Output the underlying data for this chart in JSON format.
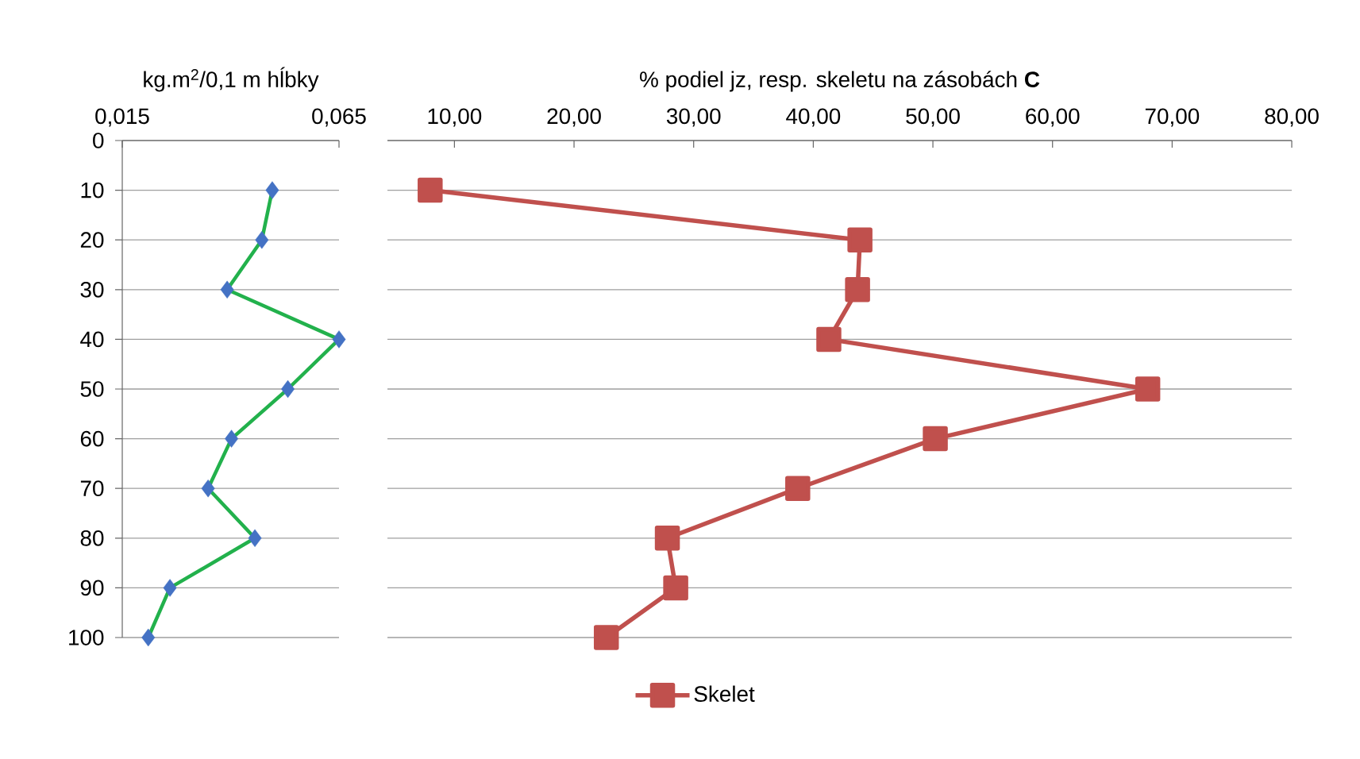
{
  "chart_data": [
    {
      "type": "line",
      "xlabel": "kg.m$^{2}$/0,1 m hĺbky",
      "xlim": [
        0.015,
        0.065
      ],
      "xticks": [
        {
          "value": 0.015,
          "label": "0,015"
        },
        {
          "value": 0.065,
          "label": "0,065"
        }
      ],
      "ylim": [
        100,
        0
      ],
      "yticks": [
        0,
        10,
        20,
        30,
        40,
        50,
        60,
        70,
        80,
        90,
        100
      ],
      "grid": "y",
      "marker": "diamond",
      "series": [
        {
          "color": "#22b14c",
          "colors": [
            "#4472c4",
            "#4472c4",
            "#4472c4",
            "#4472c4",
            "#4472c4",
            "#4472c4",
            "#4472c4",
            "#4472c4",
            "#4472c4",
            "#4472c4"
          ],
          "x": [
            0.0496,
            0.0472,
            0.0392,
            0.065,
            0.0532,
            0.0402,
            0.0348,
            0.0456,
            0.026,
            0.021
          ],
          "values": [
            10,
            20,
            30,
            40,
            50,
            60,
            70,
            80,
            90,
            100
          ]
        }
      ]
    },
    {
      "type": "line",
      "xlabel": "% podiel  jz, resp. skeletu  na zásobách **C**",
      "xlim": [
        4.4,
        80
      ],
      "xticks": [
        {
          "value": 10,
          "label": "10,00"
        },
        {
          "value": 20,
          "label": "20,00"
        },
        {
          "value": 30,
          "label": "30,00"
        },
        {
          "value": 40,
          "label": "40,00"
        },
        {
          "value": 50,
          "label": "50,00"
        },
        {
          "value": 60,
          "label": "60,00"
        },
        {
          "value": 70,
          "label": "70,00"
        },
        {
          "value": 80,
          "label": "80,00"
        }
      ],
      "ylim": [
        100,
        0
      ],
      "yticks": [
        0,
        10,
        20,
        30,
        40,
        50,
        60,
        70,
        80,
        90,
        100
      ],
      "tick_labels": "x",
      "grid": "y",
      "marker": "square",
      "legend": "bottom",
      "series": [
        {
          "name": "Skelet",
          "color": "#c0504d",
          "x": [
            7.97,
            43.9,
            43.7,
            41.3,
            67.96,
            50.2,
            38.7,
            27.8,
            28.5,
            22.7
          ],
          "values": [
            10,
            20,
            30,
            40,
            50,
            60,
            70,
            80,
            90,
            100
          ]
        }
      ]
    }
  ]
}
